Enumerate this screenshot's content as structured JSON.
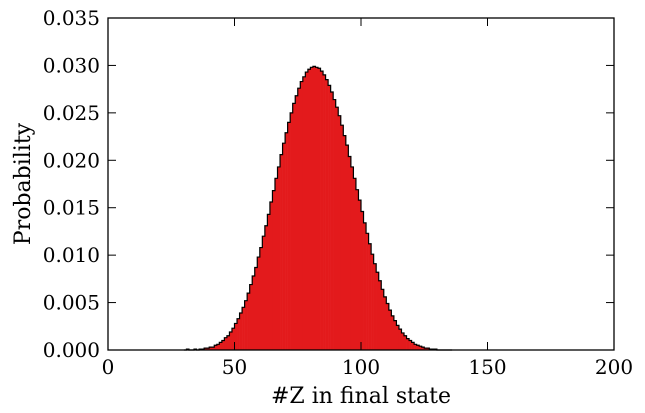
{
  "chart_data": {
    "type": "bar",
    "title": "",
    "xlabel": "#Z in final state",
    "ylabel": "Probability",
    "xlim": [
      0,
      200
    ],
    "ylim": [
      0,
      0.035
    ],
    "grid": false,
    "legend": "none",
    "fill_color": "#e31a1c",
    "edge_color": "#000000",
    "xticks": [
      0,
      50,
      100,
      150,
      200
    ],
    "xtick_labels": [
      "0",
      "50",
      "100",
      "150",
      "200"
    ],
    "yticks": [
      0,
      0.005,
      0.01,
      0.015,
      0.02,
      0.025,
      0.03,
      0.035
    ],
    "ytick_labels": [
      "0.000",
      "0.005",
      "0.010",
      "0.015",
      "0.020",
      "0.025",
      "0.030",
      "0.035"
    ],
    "bins": [
      30,
      31,
      32,
      33,
      34,
      35,
      36,
      37,
      38,
      39,
      40,
      41,
      42,
      43,
      44,
      45,
      46,
      47,
      48,
      49,
      50,
      51,
      52,
      53,
      54,
      55,
      56,
      57,
      58,
      59,
      60,
      61,
      62,
      63,
      64,
      65,
      66,
      67,
      68,
      69,
      70,
      71,
      72,
      73,
      74,
      75,
      76,
      77,
      78,
      79,
      80,
      81,
      82,
      83,
      84,
      85,
      86,
      87,
      88,
      89,
      90,
      91,
      92,
      93,
      94,
      95,
      96,
      97,
      98,
      99,
      100,
      101,
      102,
      103,
      104,
      105,
      106,
      107,
      108,
      109,
      110,
      111,
      112,
      113,
      114,
      115,
      116,
      117,
      118,
      119,
      120,
      121,
      122,
      123,
      124,
      125,
      126,
      127,
      128,
      129,
      130,
      131,
      132,
      133,
      134,
      135
    ],
    "values": [
      0.0,
      0.0001,
      0.0,
      0.0,
      0.0001,
      0.0,
      0.0001,
      0.0001,
      0.0002,
      0.0002,
      0.0003,
      0.0003,
      0.0005,
      0.0006,
      0.0008,
      0.001,
      0.0013,
      0.0015,
      0.0019,
      0.0023,
      0.0028,
      0.0033,
      0.0039,
      0.0045,
      0.0052,
      0.006,
      0.0069,
      0.0078,
      0.0087,
      0.0098,
      0.0108,
      0.012,
      0.0131,
      0.0143,
      0.0156,
      0.0168,
      0.0181,
      0.0193,
      0.0206,
      0.0218,
      0.0229,
      0.024,
      0.025,
      0.026,
      0.0268,
      0.0276,
      0.0283,
      0.0288,
      0.0293,
      0.0296,
      0.0298,
      0.0299,
      0.0298,
      0.0297,
      0.0294,
      0.029,
      0.0285,
      0.0279,
      0.0272,
      0.0264,
      0.0256,
      0.0247,
      0.0237,
      0.0226,
      0.0216,
      0.0204,
      0.0193,
      0.0181,
      0.0169,
      0.0158,
      0.0146,
      0.0134,
      0.0123,
      0.0112,
      0.0101,
      0.0091,
      0.0082,
      0.0073,
      0.0064,
      0.0056,
      0.0049,
      0.0042,
      0.0036,
      0.0031,
      0.0026,
      0.0022,
      0.0018,
      0.0015,
      0.0012,
      0.001,
      0.0008,
      0.0006,
      0.0005,
      0.0004,
      0.0003,
      0.0002,
      0.0002,
      0.0001,
      0.0001,
      0.0001,
      0.0,
      0.0,
      0.0,
      0.0,
      0.0,
      0.0
    ]
  }
}
